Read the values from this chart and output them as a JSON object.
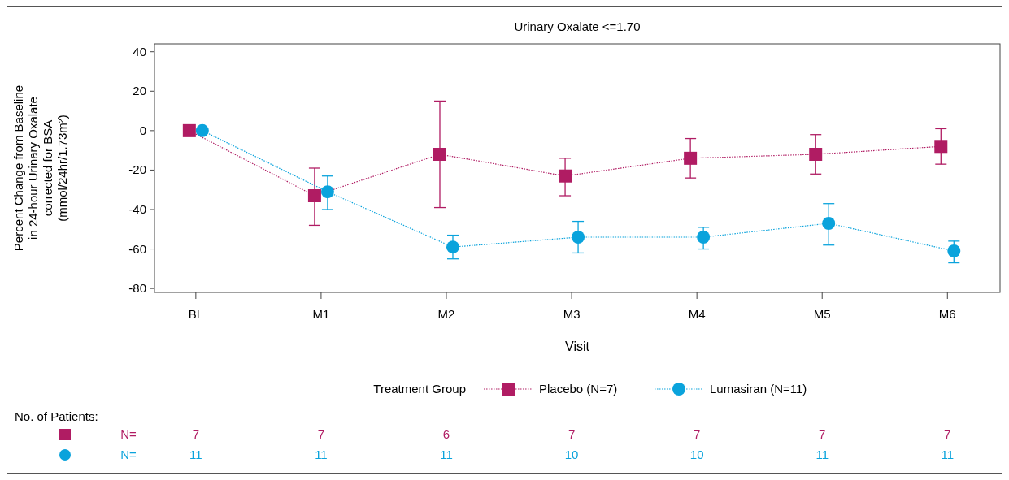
{
  "chart_data": {
    "type": "line",
    "title": "Urinary Oxalate <=1.70",
    "xlabel": "Visit",
    "ylabel": "Percent Change from Baseline\nin 24-hour Urinary Oxalate\ncorrected for BSA\n(mmol/24hr/1.73m²)",
    "legend_title": "Treatment Group",
    "legend": "bottom",
    "line_style": "dotted",
    "grid": false,
    "categories": [
      "BL",
      "M1",
      "M2",
      "M3",
      "M4",
      "M5",
      "M6"
    ],
    "ylim": [
      -82,
      44
    ],
    "yticks": [
      -80,
      -60,
      -40,
      -20,
      0,
      20,
      40
    ],
    "series": [
      {
        "name": "Placebo (N=7)",
        "color": "#b01c63",
        "marker": "square",
        "values": [
          0,
          -33,
          -12,
          -23,
          -14,
          -12,
          -8
        ],
        "errors": [
          null,
          [
            -48,
            -19
          ],
          [
            -39,
            15
          ],
          [
            -33,
            -14
          ],
          [
            -24,
            -4
          ],
          [
            -22,
            -2
          ],
          [
            -17,
            1
          ]
        ]
      },
      {
        "name": "Lumasiran (N=11)",
        "color": "#0aa3dc",
        "marker": "circle",
        "values": [
          0,
          -31,
          -59,
          -54,
          -54,
          -47,
          -61
        ],
        "errors": [
          null,
          [
            -40,
            -23
          ],
          [
            -65,
            -53
          ],
          [
            -62,
            -46
          ],
          [
            -60,
            -49
          ],
          [
            -58,
            -37
          ],
          [
            -67,
            -56
          ]
        ]
      }
    ],
    "annotations": [
      "No. of Patients:",
      "N=",
      "N=",
      "7",
      "7",
      "6",
      "7",
      "7",
      "7",
      "7",
      "11",
      "11",
      "11",
      "10",
      "10",
      "11",
      "11"
    ]
  }
}
